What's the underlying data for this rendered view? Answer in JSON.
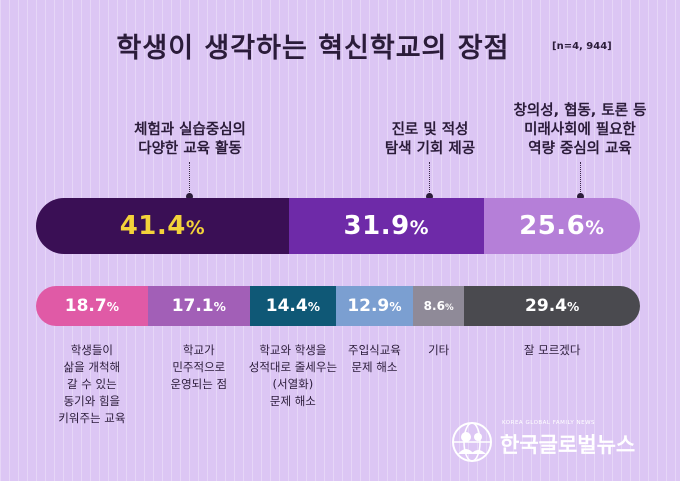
{
  "title": "학생이 생각하는 혁신학교의 장점",
  "sample_note": "[n=4, 944]",
  "colors": {
    "background": "#dcc6f4",
    "top_bar": [
      "#3a0f55",
      "#6e2aa8",
      "#b57fd8"
    ],
    "bottom_bar": [
      "#e05aa6",
      "#a25fb7",
      "#0f5876",
      "#7b9fd1",
      "#8f8a98",
      "#4a4a4f"
    ],
    "highlight_value": "#f3d23a"
  },
  "chart_data": [
    {
      "type": "bar",
      "layout": "stacked-horizontal",
      "categories": [
        "체험과 실습중심의 다양한 교육 활동",
        "진로 및 적성 탐색 기회 제공",
        "창의성, 협동, 토론 등 미래사회에 필요한 역량 중심의 교육"
      ],
      "values": [
        41.4,
        31.9,
        25.6
      ],
      "unit": "%",
      "labels": [
        {
          "lines": [
            "체험과 실습중심의",
            "다양한 교육 활동"
          ]
        },
        {
          "lines": [
            "진로 및 적성",
            "탐색 기회 제공"
          ]
        },
        {
          "lines": [
            "창의성, 협동, 토론 등",
            "미래사회에 필요한",
            "역량 중심의 교육"
          ]
        }
      ]
    },
    {
      "type": "bar",
      "layout": "stacked-horizontal",
      "categories": [
        "학생들이 삶을 개척해 갈 수 있는 동기와 힘을 키워주는 교육",
        "학교가 민주적으로 운영되는 점",
        "학교와 학생을 성적대로 줄세우는 (서열화) 문제 해소",
        "주입식교육 문제 해소",
        "기타",
        "잘 모르겠다"
      ],
      "values": [
        18.7,
        17.1,
        14.4,
        12.9,
        8.6,
        29.4
      ],
      "unit": "%",
      "labels": [
        {
          "lines": [
            "학생들이",
            "삶을 개척해",
            "갈 수 있는",
            "동기와 힘을",
            "키워주는 교육"
          ]
        },
        {
          "lines": [
            "학교가",
            "민주적으로",
            "운영되는 점"
          ]
        },
        {
          "lines": [
            "학교와 학생을",
            "성적대로 줄세우는",
            "(서열화)",
            "문제 해소"
          ]
        },
        {
          "lines": [
            "주입식교육",
            "문제 해소"
          ]
        },
        {
          "lines": [
            "기타"
          ]
        },
        {
          "lines": [
            "잘 모르겠다"
          ]
        }
      ]
    }
  ],
  "logo": {
    "small_text": "KOREA GLOBAL FAMILY NEWS",
    "name": "한국글로벌뉴스",
    "icon": "globe-person-icon"
  }
}
